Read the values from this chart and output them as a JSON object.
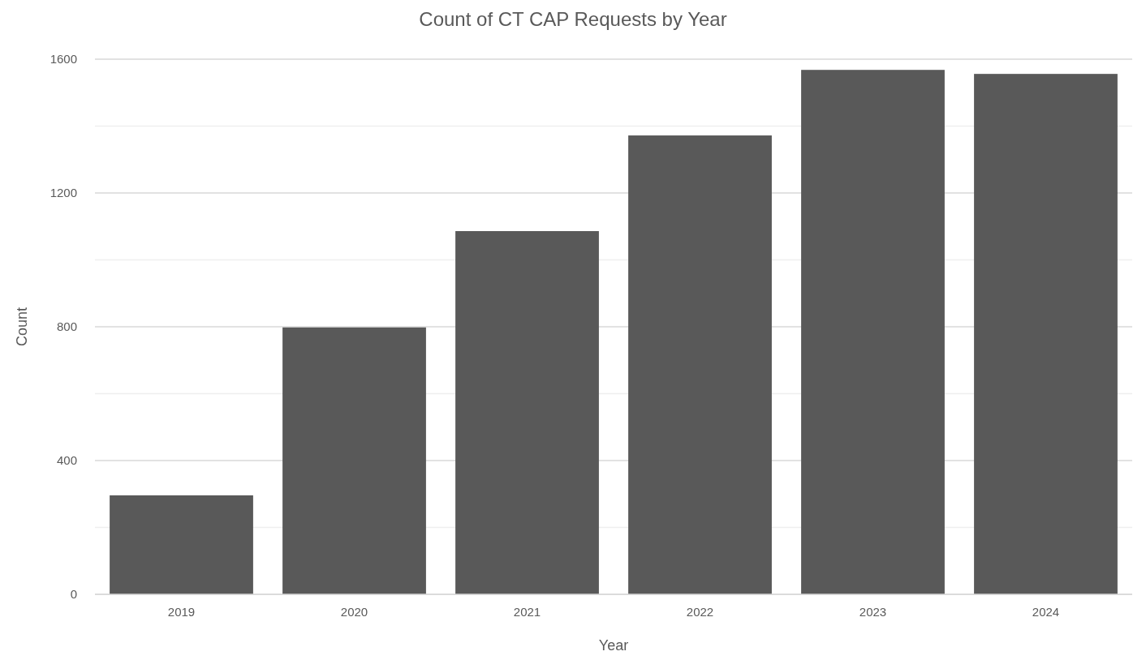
{
  "chart_data": {
    "type": "bar",
    "title": "Count of CT CAP Requests by Year",
    "xlabel": "Year",
    "ylabel": "Count",
    "categories": [
      "2019",
      "2020",
      "2021",
      "2022",
      "2023",
      "2024"
    ],
    "values": [
      296,
      798,
      1086,
      1372,
      1568,
      1556
    ],
    "color": "#595959",
    "ylim": [
      0,
      1600
    ],
    "yticks": [
      0,
      {
        "value": 200,
        "label": null
      },
      400,
      {
        "value": 600,
        "label": null
      },
      800,
      {
        "value": 1000,
        "label": null
      },
      1200,
      {
        "value": 1400,
        "label": null
      },
      1600
    ],
    "grid": "y"
  }
}
